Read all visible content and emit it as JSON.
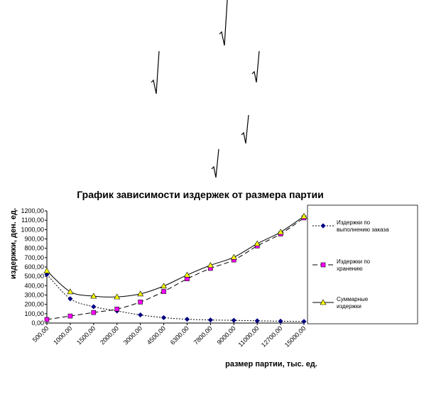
{
  "decorations": {
    "checkmark_icon": "radical-sign-icon"
  },
  "chart_data": {
    "type": "line",
    "title": "График зависимости издержек от размера партии",
    "xlabel": "размер партии, тыс. ед.",
    "ylabel": "издержки, ден. ед.",
    "categories": [
      "500,00",
      "1000,00",
      "1500,00",
      "2000,00",
      "3000,00",
      "4500,00",
      "6300,00",
      "7800,00",
      "9000,00",
      "11000,00",
      "12700,00",
      "15000,00"
    ],
    "y_ticks": [
      "0,00",
      "100,00",
      "200,00",
      "300,00",
      "400,00",
      "500,00",
      "600,00",
      "700,00",
      "800,00",
      "900,00",
      "1000,00",
      "1100,00",
      "1200,00"
    ],
    "ylim": [
      0,
      1200
    ],
    "grid": false,
    "legend_position": "right",
    "series": [
      {
        "name": "Издержки по выполнению заказа",
        "name_lines": [
          "Издержки по",
          "выполнению заказа"
        ],
        "color": "#000080",
        "marker": "diamond",
        "dash": "dotted",
        "values": [
          520,
          260,
          175,
          130,
          87,
          58,
          41,
          33,
          29,
          24,
          20,
          17
        ]
      },
      {
        "name": "Издержки по хранению",
        "name_lines": [
          "Издержки по",
          "хранению"
        ],
        "color": "#ff00ff",
        "marker": "square",
        "dash": "dashed",
        "values": [
          38,
          75,
          113,
          150,
          225,
          338,
          473,
          585,
          675,
          825,
          953,
          1125
        ]
      },
      {
        "name": "Суммарные издержки",
        "name_lines": [
          "Суммарные",
          "издержки"
        ],
        "color": "#ffff00",
        "marker": "triangle",
        "dash": "solid",
        "values": [
          558,
          335,
          288,
          280,
          312,
          396,
          514,
          618,
          704,
          849,
          973,
          1142
        ]
      }
    ]
  }
}
